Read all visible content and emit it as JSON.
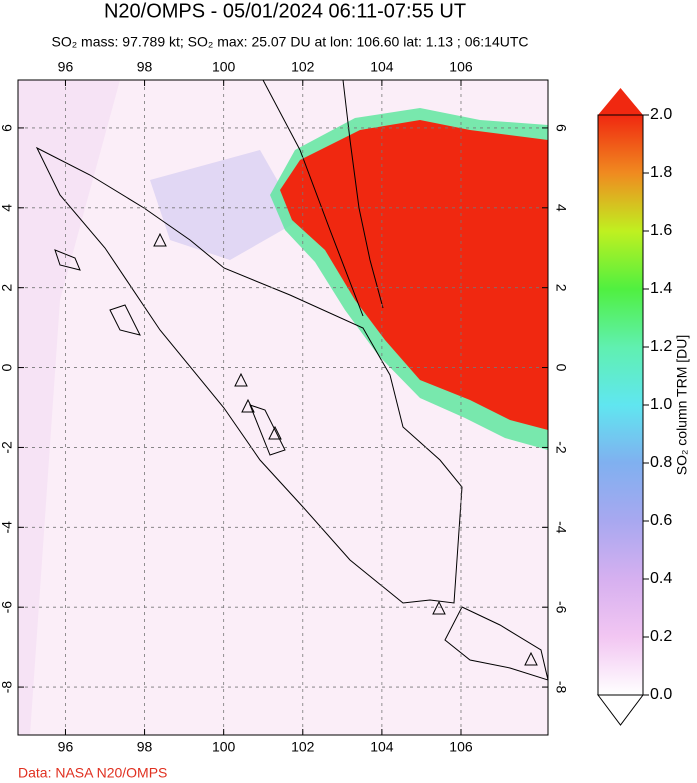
{
  "chart_data": {
    "type": "map",
    "title": "N20/OMPS - 05/01/2024 06:11-07:55 UT",
    "subtitle": "SO₂ mass: 97.789 kt; SO₂ max: 25.07 DU at lon: 106.60 lat: 1.13 ; 06:14UTC",
    "xlim": [
      94.8,
      108.2
    ],
    "xticks": [
      96,
      98,
      100,
      102,
      104,
      106
    ],
    "ylim": [
      -9.2,
      7.2
    ],
    "yticks": [
      -8,
      -6,
      -4,
      -2,
      0,
      2,
      4,
      6
    ],
    "grid": true,
    "colorbar": {
      "label": "SO₂ column TRM [DU]",
      "lim": [
        0,
        2
      ],
      "ticks": [
        {
          "value": 0,
          "label": "0.0"
        },
        0.2,
        0.4,
        0.6,
        0.8,
        {
          "value": 1,
          "label": "1.0"
        },
        1.2,
        1.4,
        1.6,
        1.8,
        {
          "value": 2,
          "label": "2.0"
        }
      ],
      "colormap": [
        "#ffffff",
        "#f2c6f2",
        "#d6b0f0",
        "#a8a8f0",
        "#80b0f0",
        "#60e6f0",
        "#60f0b0",
        "#50f040",
        "#c0f020",
        "#f08a20",
        "#f02810"
      ]
    },
    "credit": "Data: NASA N20/OMPS"
  }
}
